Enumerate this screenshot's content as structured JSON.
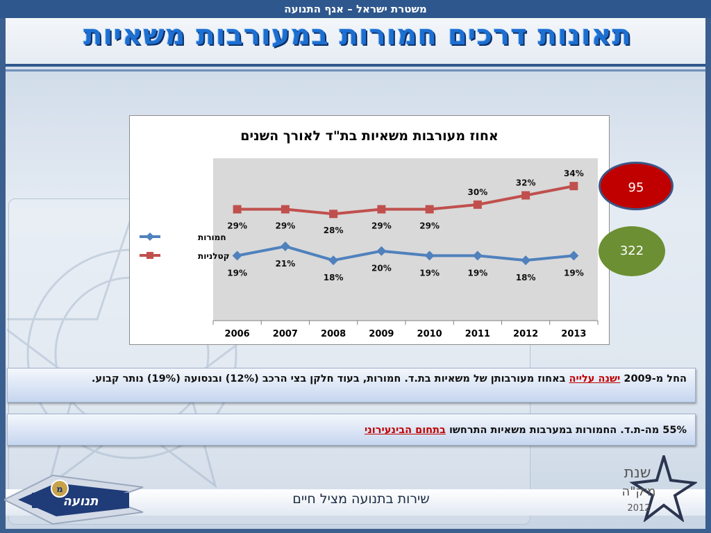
{
  "header": {
    "org_line": "משטרת ישראל – אגף התנועה",
    "title": "תאונות דרכים חמורות במעורבות משאיות"
  },
  "badges": {
    "red": "95",
    "green": "322"
  },
  "notes": {
    "note1_pre": "החל מ-2009 ",
    "note1_highlight": "ישנה עלייה",
    "note1_post": " באחוז מעורבותן של משאיות בת.ד. חמורות, בעוד חלקן בצי הרכב (12%) ובנסועה (19%) נותר קבוע.",
    "note2_pre": "55% מה-ת.ד. החמורות במערבות משאיות התרחשו ",
    "note2_highlight": "בתחום הבינעירוני"
  },
  "footer": {
    "slogan": "שירות בתנועה מציל חיים",
    "logo_left_text": "תנועה",
    "logo_left_badge": "מ",
    "logo_right_line1": "שנת",
    "logo_right_line2": "מיק\"ה",
    "logo_right_year": "2012"
  },
  "chart_data": {
    "type": "line",
    "title": "אחוז מעורבות משאיות בת\"ד לאורך השנים",
    "categories": [
      "2006",
      "2007",
      "2008",
      "2009",
      "2010",
      "2011",
      "2012",
      "2013"
    ],
    "series": [
      {
        "name": "חמורות",
        "values": [
          19,
          21,
          18,
          20,
          19,
          19,
          18,
          19
        ],
        "color": "#4f81bd",
        "marker": "diamond"
      },
      {
        "name": "קטלניות",
        "values": [
          29,
          29,
          28,
          29,
          29,
          30,
          32,
          34
        ],
        "color": "#c0504d",
        "marker": "square"
      }
    ],
    "value_suffix": "%",
    "legend": "left",
    "grid": false,
    "plot_background": "#d9d9d9"
  }
}
